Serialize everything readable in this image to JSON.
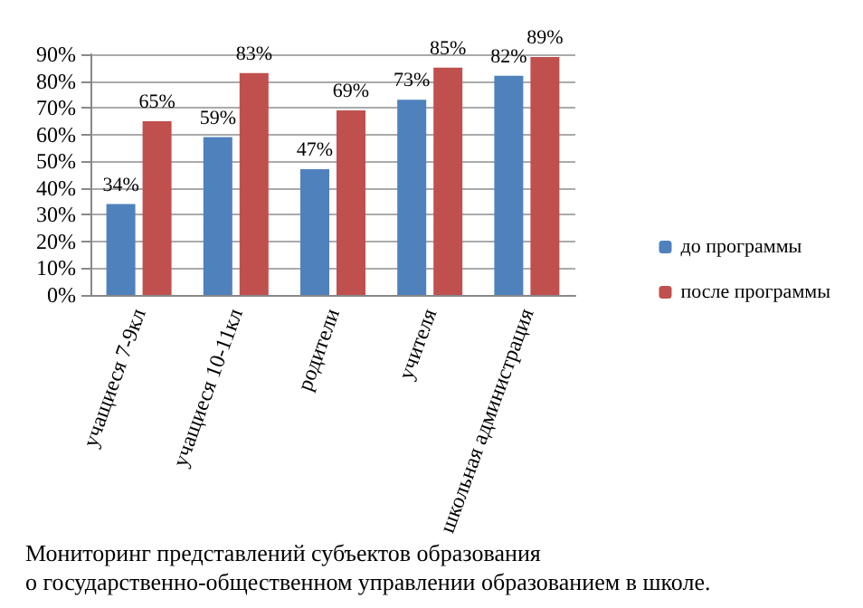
{
  "chart_data": {
    "type": "bar",
    "categories": [
      "учащиеся 7-9кл",
      "учащиеся 10-11кл",
      "родители",
      "учителя",
      "школьная администрация"
    ],
    "series": [
      {
        "name": "до программы",
        "color": "#4f81bd",
        "values": [
          34,
          59,
          47,
          73,
          82
        ],
        "value_labels": [
          "34%",
          "59%",
          "47%",
          "73%",
          "82%"
        ]
      },
      {
        "name": "после программы",
        "color": "#c0504d",
        "values": [
          65,
          83,
          69,
          85,
          89
        ],
        "value_labels": [
          "65%",
          "83%",
          "69%",
          "85%",
          "89%"
        ]
      }
    ],
    "ylim": [
      0,
      90
    ],
    "yticks": [
      {
        "value": 0,
        "label": "0%"
      },
      {
        "value": 10,
        "label": "10%"
      },
      {
        "value": 20,
        "label": "20%"
      },
      {
        "value": 30,
        "label": "30%"
      },
      {
        "value": 40,
        "label": "40%"
      },
      {
        "value": 50,
        "label": "50%"
      },
      {
        "value": 60,
        "label": "60%"
      },
      {
        "value": 70,
        "label": "70%"
      },
      {
        "value": 80,
        "label": "80%"
      },
      {
        "value": 90,
        "label": "90%"
      }
    ],
    "grid": "y",
    "legend": "right",
    "annotations": [
      "Мониторинг представлений субъектов образования\nо государственно-общественном управлении образованием в школе."
    ]
  }
}
